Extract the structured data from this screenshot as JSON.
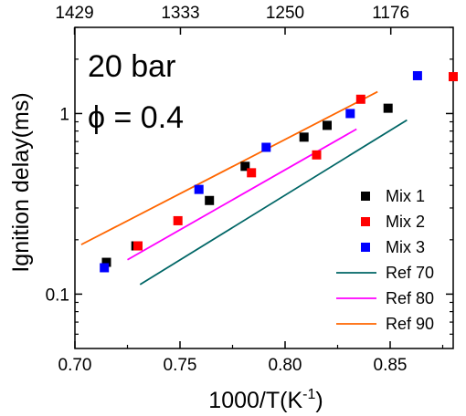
{
  "chart_data": {
    "type": "scatter",
    "xlabel": "1000/T(K",
    "xlabel_sup": "-1",
    "xlabel_end": ")",
    "ylabel": "Ignition delay(ms)",
    "xlim": [
      0.7,
      0.88
    ],
    "ylim": [
      0.05,
      3.0
    ],
    "yscale": "log",
    "x_ticks": [
      0.7,
      0.75,
      0.8,
      0.85
    ],
    "x_tick_labels": [
      "0.70",
      "0.75",
      "0.80",
      "0.85"
    ],
    "y_ticks": [
      0.1,
      1
    ],
    "y_tick_labels": [
      "0.1",
      "1"
    ],
    "top_axis_ticks": [
      0.6998,
      0.7502,
      0.8,
      0.8503
    ],
    "top_axis_labels": [
      "1429",
      "1333",
      "1250",
      "1176"
    ],
    "annotations": [
      "20 bar",
      "ϕ = 0.4"
    ],
    "legend_position": "bottom-right",
    "series": [
      {
        "name": "Mix 1",
        "kind": "marker",
        "color": "#000000",
        "x": [
          0.715,
          0.729,
          0.764,
          0.781,
          0.809,
          0.82,
          0.849
        ],
        "y": [
          0.15,
          0.185,
          0.33,
          0.51,
          0.74,
          0.86,
          1.07
        ]
      },
      {
        "name": "Mix 2",
        "kind": "marker",
        "color": "#ff0000",
        "x": [
          0.73,
          0.749,
          0.784,
          0.815,
          0.836,
          0.88
        ],
        "y": [
          0.185,
          0.255,
          0.47,
          0.59,
          1.2,
          1.6
        ]
      },
      {
        "name": "Mix 3",
        "kind": "marker",
        "color": "#0000ff",
        "x": [
          0.714,
          0.759,
          0.791,
          0.831,
          0.863
        ],
        "y": [
          0.14,
          0.38,
          0.65,
          1.0,
          1.62
        ]
      },
      {
        "name": "Ref 70",
        "kind": "line",
        "color": "#006666",
        "x": [
          0.731,
          0.858
        ],
        "y": [
          0.113,
          0.92
        ]
      },
      {
        "name": "Ref 80",
        "kind": "line",
        "color": "#ff00ff",
        "x": [
          0.725,
          0.834
        ],
        "y": [
          0.155,
          0.82
        ]
      },
      {
        "name": "Ref 90",
        "kind": "line",
        "color": "#ff6600",
        "x": [
          0.703,
          0.844
        ],
        "y": [
          0.188,
          1.32
        ]
      }
    ]
  }
}
